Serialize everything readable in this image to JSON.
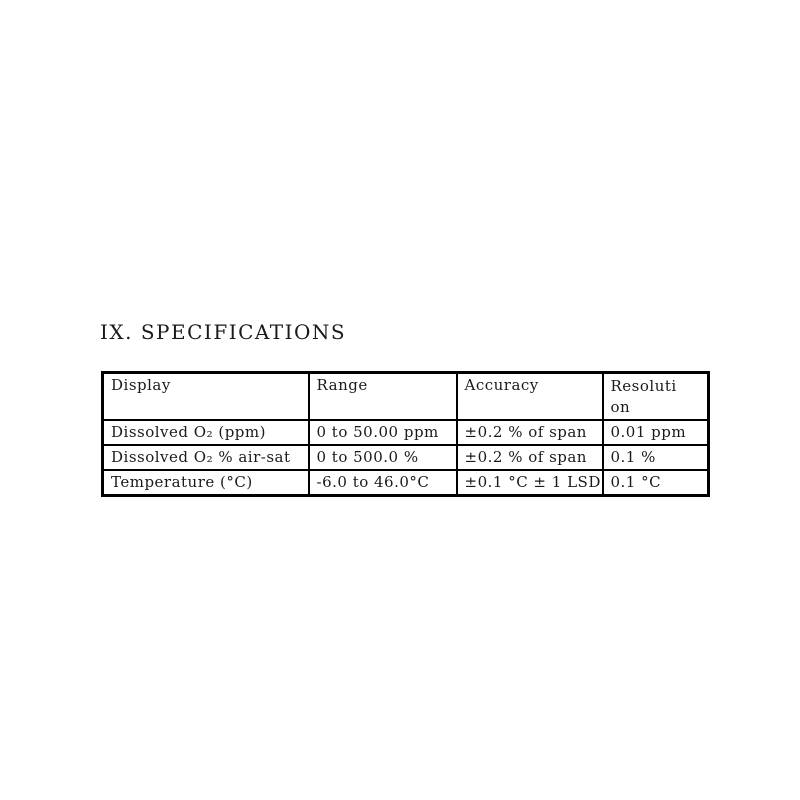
{
  "page": {
    "background_color": "#ffffff",
    "text_color": "#1a1a1a",
    "border_color": "#000000"
  },
  "section": {
    "heading": "IX. SPECIFICATIONS"
  },
  "table": {
    "columns": [
      {
        "label": "Display"
      },
      {
        "label": "Range"
      },
      {
        "label": "Accuracy"
      },
      {
        "label": "Resolution"
      }
    ],
    "rows": [
      {
        "display": "Dissolved O₂ (ppm)",
        "range": "0 to 50.00 ppm",
        "accuracy": "±0.2 % of span",
        "resolution": "0.01 ppm"
      },
      {
        "display": "Dissolved O₂ % air-sat",
        "range": "0 to 500.0 %",
        "accuracy": "±0.2 % of span",
        "resolution": "0.1 %"
      },
      {
        "display": "Temperature (°C)",
        "range": "-6.0 to 46.0°C",
        "accuracy": "±0.1 °C ± 1 LSD",
        "resolution": "0.1 °C"
      }
    ]
  }
}
